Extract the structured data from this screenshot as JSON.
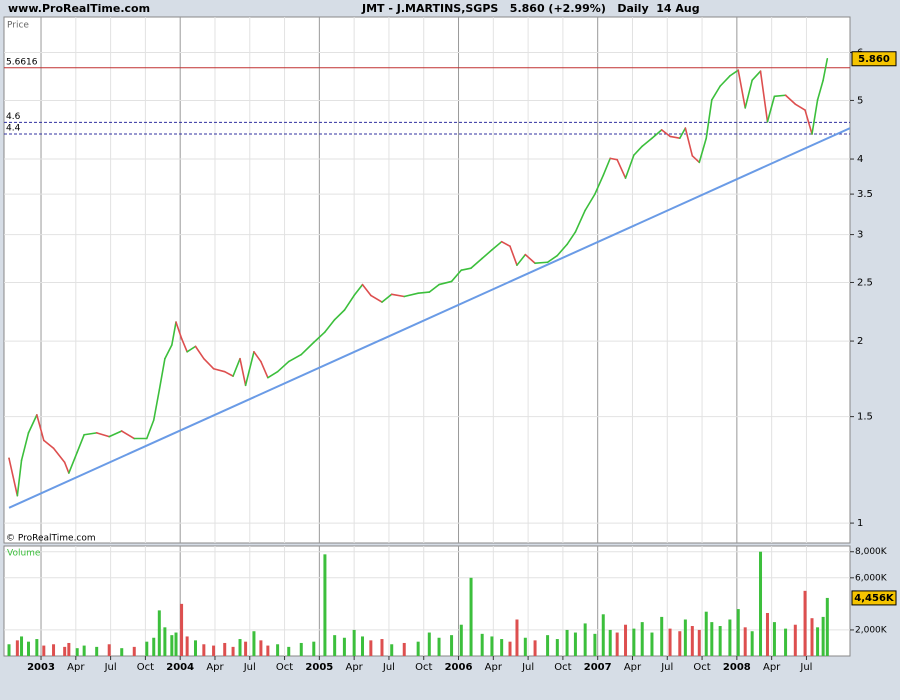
{
  "chart_data": {
    "type": "stock",
    "site": "www.ProRealTime.com",
    "title": "JMT - J.MARTINS,SGPS   5.860 (+2.99%)   Daily  14 Aug",
    "price_label": "Price",
    "volume_label": "Volume",
    "copyright": "© ProRealTime.com",
    "log_scale": true,
    "grid": true,
    "up_color": "#3cbf3c",
    "down_color": "#dd4f4f",
    "xlim": [
      2002.734,
      2008.813
    ],
    "xticks": [
      {
        "value": 2003,
        "label": "2003"
      },
      {
        "value": 2003.25,
        "label": "Apr"
      },
      {
        "value": 2003.5,
        "label": "Jul"
      },
      {
        "value": 2003.75,
        "label": "Oct"
      },
      {
        "value": 2004,
        "label": "2004"
      },
      {
        "value": 2004.25,
        "label": "Apr"
      },
      {
        "value": 2004.5,
        "label": "Jul"
      },
      {
        "value": 2004.75,
        "label": "Oct"
      },
      {
        "value": 2005,
        "label": "2005"
      },
      {
        "value": 2005.25,
        "label": "Apr"
      },
      {
        "value": 2005.5,
        "label": "Jul"
      },
      {
        "value": 2005.75,
        "label": "Oct"
      },
      {
        "value": 2006,
        "label": "2006"
      },
      {
        "value": 2006.25,
        "label": "Apr"
      },
      {
        "value": 2006.5,
        "label": "Jul"
      },
      {
        "value": 2006.75,
        "label": "Oct"
      },
      {
        "value": 2007,
        "label": "2007"
      },
      {
        "value": 2007.25,
        "label": "Apr"
      },
      {
        "value": 2007.5,
        "label": "Jul"
      },
      {
        "value": 2007.75,
        "label": "Oct"
      },
      {
        "value": 2008,
        "label": "2008"
      },
      {
        "value": 2008.25,
        "label": "Apr"
      },
      {
        "value": 2008.5,
        "label": "Jul"
      }
    ],
    "ylim": [
      0.927,
      6.87
    ],
    "yticks": [
      1,
      1.5,
      2,
      2.5,
      3,
      3.5,
      4,
      5,
      6
    ],
    "y2lim": [
      0,
      8440
    ],
    "y2ticks": [
      {
        "value": 2000,
        "label": "2,000K"
      },
      {
        "value": 6000,
        "label": "6,000K"
      },
      {
        "value": 8000,
        "label": "8,000K"
      }
    ],
    "x": [
      2002.77,
      2002.83,
      2002.86,
      2002.91,
      2002.97,
      2003.02,
      2003.09,
      2003.17,
      2003.2,
      2003.26,
      2003.31,
      2003.4,
      2003.49,
      2003.58,
      2003.67,
      2003.76,
      2003.81,
      2003.85,
      2003.89,
      2003.94,
      2003.97,
      2004.01,
      2004.05,
      2004.11,
      2004.17,
      2004.24,
      2004.32,
      2004.38,
      2004.43,
      2004.47,
      2004.53,
      2004.58,
      2004.63,
      2004.7,
      2004.78,
      2004.87,
      2004.96,
      2005.04,
      2005.11,
      2005.18,
      2005.25,
      2005.31,
      2005.37,
      2005.45,
      2005.52,
      2005.61,
      2005.71,
      2005.79,
      2005.86,
      2005.95,
      2006.02,
      2006.09,
      2006.17,
      2006.24,
      2006.31,
      2006.37,
      2006.42,
      2006.48,
      2006.55,
      2006.64,
      2006.71,
      2006.78,
      2006.84,
      2006.91,
      2006.98,
      2007.04,
      2007.09,
      2007.14,
      2007.2,
      2007.26,
      2007.32,
      2007.39,
      2007.46,
      2007.52,
      2007.59,
      2007.63,
      2007.68,
      2007.73,
      2007.78,
      2007.82,
      2007.88,
      2007.95,
      2008.01,
      2008.06,
      2008.11,
      2008.17,
      2008.22,
      2008.27,
      2008.35,
      2008.42,
      2008.49,
      2008.54,
      2008.58,
      2008.62,
      2008.65
    ],
    "series": [
      {
        "name": "Price",
        "values": [
          1.28,
          1.11,
          1.27,
          1.41,
          1.51,
          1.37,
          1.33,
          1.26,
          1.21,
          1.31,
          1.4,
          1.41,
          1.39,
          1.42,
          1.38,
          1.38,
          1.48,
          1.66,
          1.87,
          1.97,
          2.15,
          2.02,
          1.92,
          1.96,
          1.87,
          1.8,
          1.78,
          1.75,
          1.87,
          1.69,
          1.92,
          1.85,
          1.74,
          1.78,
          1.85,
          1.9,
          1.99,
          2.07,
          2.17,
          2.25,
          2.38,
          2.48,
          2.38,
          2.32,
          2.39,
          2.37,
          2.4,
          2.41,
          2.48,
          2.51,
          2.62,
          2.64,
          2.74,
          2.83,
          2.92,
          2.87,
          2.67,
          2.78,
          2.69,
          2.7,
          2.77,
          2.89,
          3.03,
          3.29,
          3.5,
          3.76,
          4.01,
          3.99,
          3.72,
          4.06,
          4.2,
          4.33,
          4.47,
          4.36,
          4.33,
          4.5,
          4.05,
          3.95,
          4.33,
          5.01,
          5.28,
          5.49,
          5.61,
          4.86,
          5.4,
          5.59,
          4.61,
          5.08,
          5.1,
          4.93,
          4.82,
          4.4,
          5.01,
          5.4,
          5.86
        ]
      },
      {
        "name": "Volume",
        "axis": "y2",
        "values": [
          900,
          1200,
          1500,
          1100,
          1300,
          800,
          900,
          700,
          1000,
          600,
          800,
          700,
          900,
          600,
          700,
          1100,
          1400,
          3500,
          2200,
          1600,
          1800,
          4000,
          1500,
          1200,
          900,
          800,
          1000,
          700,
          1300,
          1100,
          1900,
          1200,
          800,
          900,
          700,
          1000,
          1100,
          7800,
          1600,
          1400,
          2000,
          1500,
          1200,
          1300,
          900,
          1000,
          1100,
          1800,
          1400,
          1600,
          2400,
          6000,
          1700,
          1500,
          1300,
          1100,
          2800,
          1400,
          1200,
          1600,
          1300,
          2000,
          1800,
          2500,
          1700,
          3200,
          2000,
          1800,
          2400,
          2100,
          2600,
          1800,
          3000,
          2100,
          1900,
          2800,
          2300,
          2000,
          3400,
          2600,
          2300,
          2800,
          3600,
          2200,
          1900,
          8000,
          3300,
          2600,
          2100,
          2400,
          5000,
          2900,
          2200,
          3000,
          4456
        ]
      }
    ],
    "levels": [
      {
        "value": 5.6616,
        "label": "5.6616",
        "color": "#c03030",
        "dashed": false
      },
      {
        "value": 4.6,
        "label": "4.6",
        "color": "#3030a0",
        "dashed": true
      },
      {
        "value": 4.4,
        "label": "4.4",
        "color": "#3030a0",
        "dashed": true
      }
    ],
    "trendline": {
      "x": [
        2002.77,
        2008.813
      ],
      "values": [
        1.06,
        4.5
      ],
      "color": "#6a9be6"
    },
    "last_price": {
      "value": 5.86,
      "label": "5.860"
    },
    "last_volume": {
      "value": 4456,
      "label": "4,456K"
    }
  }
}
